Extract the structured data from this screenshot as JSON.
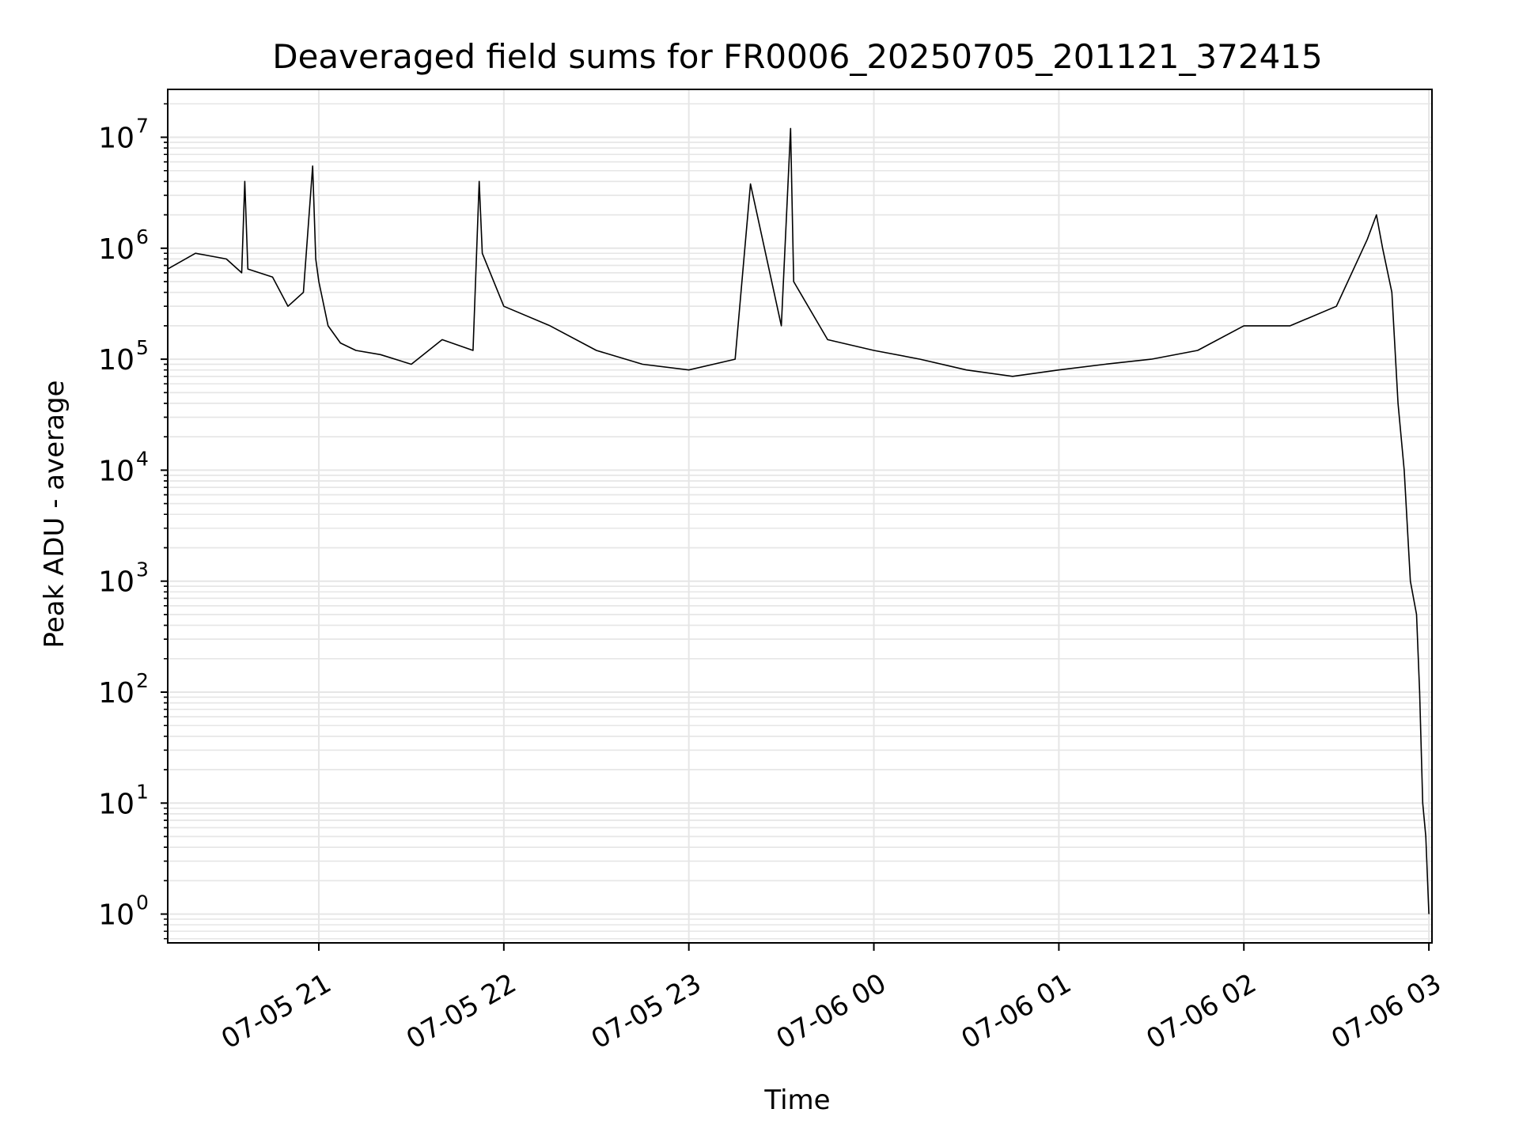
{
  "chart_data": {
    "type": "line",
    "title": "Deaveraged field sums for FR0006_20250705_201121_372415",
    "xlabel": "Time",
    "ylabel": "Peak ADU - average",
    "y_scale": "log",
    "ylim": [
      0.55,
      27000000
    ],
    "xlim": [
      "2025-07-05 20:11",
      "2025-07-06 03:01"
    ],
    "grid": "on (major and minor)",
    "line_color": "#000000",
    "grid_color": "#e6e6e6",
    "x_ticks": [
      {
        "value": "2025-07-05 21:00",
        "label": "07-05 21"
      },
      {
        "value": "2025-07-05 22:00",
        "label": "07-05 22"
      },
      {
        "value": "2025-07-05 23:00",
        "label": "07-05 23"
      },
      {
        "value": "2025-07-06 00:00",
        "label": "07-06 00"
      },
      {
        "value": "2025-07-06 01:00",
        "label": "07-06 01"
      },
      {
        "value": "2025-07-06 02:00",
        "label": "07-06 02"
      },
      {
        "value": "2025-07-06 03:00",
        "label": "07-06 03"
      }
    ],
    "y_ticks": [
      {
        "value": 1,
        "base": "10",
        "exp": "0"
      },
      {
        "value": 10,
        "base": "10",
        "exp": "1"
      },
      {
        "value": 100,
        "base": "10",
        "exp": "2"
      },
      {
        "value": 1000,
        "base": "10",
        "exp": "3"
      },
      {
        "value": 10000,
        "base": "10",
        "exp": "4"
      },
      {
        "value": 100000,
        "base": "10",
        "exp": "5"
      },
      {
        "value": 1000000,
        "base": "10",
        "exp": "6"
      },
      {
        "value": 10000000,
        "base": "10",
        "exp": "7"
      }
    ],
    "series": [
      {
        "x": [
          "2025-07-05 20:11",
          "2025-07-05 20:20",
          "2025-07-05 20:30",
          "2025-07-05 20:35",
          "2025-07-05 20:36",
          "2025-07-05 20:37",
          "2025-07-05 20:45",
          "2025-07-05 20:50",
          "2025-07-05 20:55",
          "2025-07-05 20:58",
          "2025-07-05 20:59",
          "2025-07-05 21:00",
          "2025-07-05 21:03",
          "2025-07-05 21:07",
          "2025-07-05 21:12",
          "2025-07-05 21:20",
          "2025-07-05 21:30",
          "2025-07-05 21:40",
          "2025-07-05 21:50",
          "2025-07-05 21:52",
          "2025-07-05 21:53",
          "2025-07-05 22:00",
          "2025-07-05 22:15",
          "2025-07-05 22:30",
          "2025-07-05 22:45",
          "2025-07-05 23:00",
          "2025-07-05 23:15",
          "2025-07-05 23:20",
          "2025-07-05 23:30",
          "2025-07-05 23:33",
          "2025-07-05 23:34",
          "2025-07-05 23:45",
          "2025-07-06 00:00",
          "2025-07-06 00:15",
          "2025-07-06 00:30",
          "2025-07-06 00:45",
          "2025-07-06 01:00",
          "2025-07-06 01:15",
          "2025-07-06 01:30",
          "2025-07-06 01:45",
          "2025-07-06 02:00",
          "2025-07-06 02:15",
          "2025-07-06 02:30",
          "2025-07-06 02:40",
          "2025-07-06 02:43",
          "2025-07-06 02:45",
          "2025-07-06 02:48",
          "2025-07-06 02:50",
          "2025-07-06 02:52",
          "2025-07-06 02:54",
          "2025-07-06 02:56",
          "2025-07-06 02:57",
          "2025-07-06 02:58",
          "2025-07-06 02:59",
          "2025-07-06 03:00"
        ],
        "y": [
          650000,
          900000,
          800000,
          600000,
          4000000,
          650000,
          550000,
          300000,
          400000,
          5500000,
          800000,
          500000,
          200000,
          140000,
          120000,
          110000,
          90000,
          150000,
          120000,
          4000000,
          900000,
          300000,
          200000,
          120000,
          90000,
          80000,
          100000,
          3800000,
          200000,
          12000000,
          500000,
          150000,
          120000,
          100000,
          80000,
          70000,
          80000,
          90000,
          100000,
          120000,
          200000,
          200000,
          300000,
          1200000,
          2000000,
          1000000,
          400000,
          40000,
          10000,
          1000,
          500,
          100,
          10,
          5,
          1
        ]
      }
    ]
  }
}
